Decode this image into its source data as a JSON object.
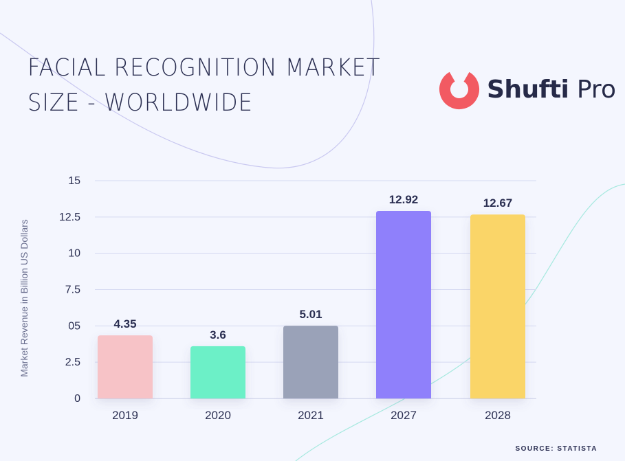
{
  "header": {
    "title_line1": "FACIAL RECOGNITION MARKET",
    "title_line2": "SIZE - WORLDWIDE"
  },
  "logo": {
    "text_bold": "Shufti",
    "text_regular": "Pro",
    "color": "#f25a62"
  },
  "source": "SOURCE: STATISTA",
  "chart_data": {
    "type": "bar",
    "categories": [
      "2019",
      "2020",
      "2021",
      "2027",
      "2028"
    ],
    "values": [
      4.35,
      3.6,
      5.01,
      12.92,
      12.67
    ],
    "value_labels": [
      "4.35",
      "3.6",
      "5.01",
      "12.92",
      "12.67"
    ],
    "colors": [
      "#f7c3c7",
      "#6cf0c7",
      "#9aa2b8",
      "#8f80fb",
      "#fad568"
    ],
    "ylabel": "Market Revenue in Billion US Dollars",
    "xlabel": "",
    "ylim": [
      0,
      15
    ],
    "yticks": [
      0,
      2.5,
      5,
      7.5,
      10,
      12.5,
      15
    ],
    "ytick_labels": [
      "0",
      "2.5",
      "05",
      "7.5",
      "10",
      "12.5",
      "15"
    ],
    "grid": true,
    "legend": "none"
  }
}
